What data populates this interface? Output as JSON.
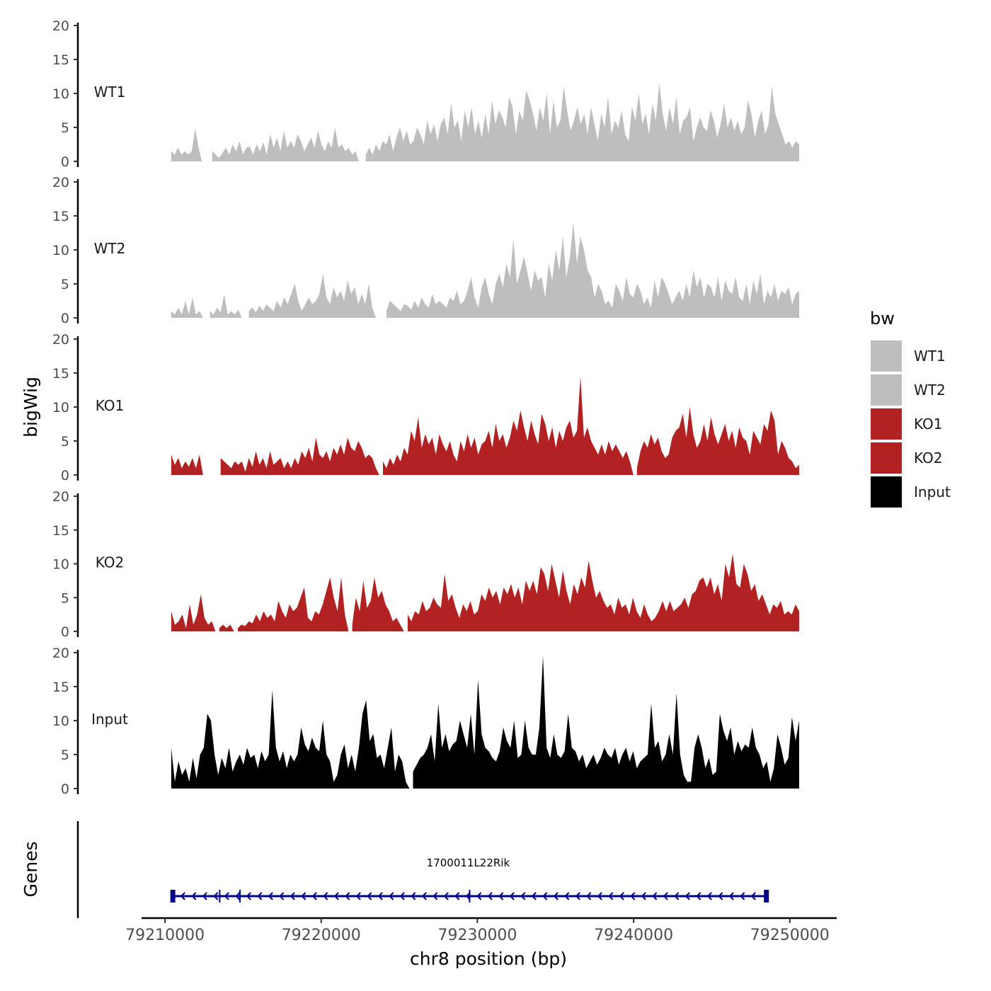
{
  "chart_data": {
    "type": "area",
    "title": "",
    "ylabel": "bigWig",
    "xlabel": "chr8 position (bp)",
    "genes_label": "Genes",
    "ylim": [
      0,
      20
    ],
    "yticks": [
      0,
      5,
      10,
      15,
      20
    ],
    "xlim": [
      79208500,
      79253000
    ],
    "xticks": [
      79210000,
      79220000,
      79230000,
      79240000,
      79250000
    ],
    "xtick_labels": [
      "79210000",
      "79220000",
      "79230000",
      "79240000",
      "79250000"
    ],
    "data_range": [
      79210400,
      79250600
    ],
    "legend": {
      "title": "bw",
      "position": "right",
      "entries": [
        {
          "name": "WT1",
          "color": "#bebebe"
        },
        {
          "name": "WT2",
          "color": "#bebebe"
        },
        {
          "name": "KO1",
          "color": "#b22222"
        },
        {
          "name": "KO2",
          "color": "#b22222"
        },
        {
          "name": "Input",
          "color": "#000000"
        }
      ]
    },
    "series": [
      {
        "name": "WT1",
        "color": "#bebebe",
        "values": [
          1.5,
          1,
          2,
          1,
          1.5,
          1,
          1.5,
          4.8,
          2,
          0,
          0,
          0,
          1.5,
          1,
          0.5,
          1.2,
          2,
          1,
          2.5,
          1.5,
          3,
          1,
          2,
          2.2,
          1,
          2.5,
          1.5,
          2.8,
          1,
          4,
          2,
          3.5,
          1.5,
          4.5,
          2,
          3,
          2,
          4,
          3,
          1.5,
          2.5,
          3.5,
          2,
          4.5,
          2.5,
          1.5,
          3,
          2,
          5,
          2,
          2.5,
          1.5,
          2,
          1,
          1.5,
          0,
          0,
          1,
          2,
          1,
          2.5,
          1.5,
          3,
          2.5,
          4,
          1.5,
          3.5,
          5,
          3,
          4.5,
          2.5,
          3,
          5,
          4,
          2.5,
          6,
          4,
          5.5,
          3,
          5.5,
          6.5,
          4,
          8.5,
          5,
          6,
          3,
          7.5,
          5,
          8,
          4,
          6,
          3.5,
          7,
          4,
          9,
          5.5,
          7.5,
          6.5,
          5,
          9.5,
          8,
          4,
          7.5,
          6,
          10.5,
          9,
          7,
          4.5,
          8,
          6,
          10,
          4,
          9,
          5,
          6,
          11,
          7.5,
          4.5,
          6,
          8,
          5.5,
          7,
          4,
          8,
          5.5,
          3,
          7,
          5,
          9.5,
          4,
          6,
          5,
          7.5,
          4,
          3,
          8,
          6,
          10,
          5.5,
          7,
          4,
          8.5,
          6,
          11.5,
          7,
          4.5,
          8,
          5.5,
          9.5,
          4,
          6,
          6.5,
          8,
          3,
          5,
          6.5,
          5,
          4.5,
          7.5,
          6,
          3.5,
          5.5,
          8.5,
          5,
          6.5,
          4.5,
          6,
          4,
          5,
          9,
          7,
          3.5,
          6,
          7.5,
          4,
          5.5,
          11,
          7,
          5.5,
          4,
          2.5,
          3,
          2,
          3,
          2.5
        ]
      },
      {
        "name": "WT2",
        "color": "#bebebe",
        "values": [
          1,
          0.5,
          1.5,
          0.5,
          2.5,
          0.5,
          3,
          0.5,
          1,
          0,
          0,
          1,
          0.5,
          1.5,
          0.8,
          3.5,
          0.5,
          1,
          0.5,
          1.2,
          0,
          0,
          1,
          1.5,
          0.8,
          1.8,
          1,
          2,
          1.5,
          1,
          2.5,
          1.5,
          3,
          2,
          3.5,
          5,
          2.5,
          1,
          2,
          3,
          2,
          2.5,
          3.5,
          6.5,
          3,
          2,
          4.5,
          3,
          4,
          2.5,
          5.5,
          3.5,
          4.5,
          2,
          3.5,
          2,
          5,
          1.5,
          0,
          0,
          0,
          1,
          2.5,
          2,
          1.5,
          1,
          2,
          1.8,
          1.2,
          2.5,
          1.5,
          3,
          2,
          1.5,
          3.5,
          2,
          2.5,
          2,
          1.5,
          3,
          2.5,
          4,
          2,
          2.5,
          4,
          6,
          3,
          1.5,
          4.5,
          6,
          3.5,
          2,
          5,
          6.5,
          4.5,
          8,
          6,
          11.5,
          5,
          7,
          9,
          6.5,
          4,
          7,
          5.5,
          6,
          3,
          8,
          5.5,
          10,
          7,
          12,
          6,
          9,
          14,
          8,
          12,
          10,
          7,
          6,
          3,
          5,
          4,
          2,
          2.5,
          1.5,
          5,
          4,
          2.5,
          6,
          3.5,
          3,
          5,
          4,
          2,
          3,
          1.5,
          5.5,
          3,
          6,
          5,
          3.5,
          2,
          3,
          4,
          2.5,
          5,
          3,
          7,
          4.5,
          6,
          3,
          5,
          4.5,
          3,
          6,
          2.5,
          5.5,
          4,
          3.5,
          6,
          3,
          2.5,
          5,
          2,
          5.5,
          3.5,
          6.5,
          2,
          4,
          3,
          5,
          2.5,
          4,
          3.5,
          4.5,
          2,
          3.5,
          4
        ]
      },
      {
        "name": "KO1",
        "color": "#b22222",
        "values": [
          3,
          1.5,
          2.5,
          1,
          2,
          1.2,
          2.5,
          1,
          3,
          0,
          0,
          0,
          0,
          0,
          2.5,
          2,
          1.5,
          1,
          2,
          1.5,
          2,
          0.5,
          2.5,
          1.2,
          3.5,
          1.5,
          2.5,
          1,
          3.5,
          1.5,
          2,
          2.5,
          1,
          2,
          1,
          2.5,
          1.5,
          3.5,
          2.5,
          4,
          2,
          5.5,
          3,
          2.5,
          3.5,
          2,
          4,
          3,
          4.5,
          3,
          5.5,
          4,
          3.5,
          5,
          4,
          2.5,
          3,
          2.5,
          1,
          0,
          2,
          1,
          2.5,
          1.5,
          3,
          2,
          4,
          3,
          6.5,
          5,
          8.5,
          4,
          6,
          4.5,
          5.5,
          3,
          6,
          4.5,
          3.5,
          5,
          3,
          2,
          5,
          3.5,
          6,
          4,
          5.5,
          3,
          4.5,
          5,
          6.5,
          4,
          7.5,
          5,
          6,
          4,
          5.5,
          8,
          6.5,
          9.5,
          7,
          5,
          8,
          6,
          4.5,
          9,
          7.5,
          5,
          7,
          4,
          6.5,
          5,
          7,
          8,
          5.5,
          6.5,
          14.5,
          5.5,
          7,
          5,
          4,
          3,
          4.5,
          3,
          5,
          3.5,
          4.5,
          3.5,
          2.5,
          3.5,
          2,
          0,
          1,
          3.5,
          5,
          4,
          6,
          4.5,
          5.5,
          3.5,
          2.5,
          3,
          5.5,
          6.5,
          7,
          9,
          5.5,
          10,
          6,
          4,
          5,
          7.5,
          5,
          8.5,
          6,
          4.5,
          6,
          7.5,
          5,
          6.5,
          4,
          7,
          5.5,
          5,
          3,
          6.5,
          5.5,
          4.5,
          7.5,
          6.5,
          9.5,
          8,
          3,
          5,
          4,
          2.5,
          2,
          1,
          1.5
        ]
      },
      {
        "name": "KO2",
        "color": "#b22222",
        "values": [
          3,
          1,
          1.5,
          2.5,
          0.5,
          4,
          1,
          2.5,
          5.5,
          2,
          1,
          1.5,
          0,
          0.5,
          1,
          0.5,
          1,
          0,
          0.5,
          1,
          0.8,
          1.5,
          1.2,
          2.5,
          1.5,
          3,
          2,
          2.5,
          1.5,
          4.5,
          3,
          2,
          4,
          3,
          3.5,
          5,
          6.5,
          2,
          1.5,
          3,
          2.5,
          4,
          6,
          8,
          5,
          3,
          8,
          2.5,
          0,
          1,
          5,
          3,
          7.5,
          3.5,
          4.5,
          8,
          5,
          6,
          4,
          3,
          1.5,
          2,
          1,
          0,
          2.5,
          1.5,
          3,
          2.5,
          4.5,
          3,
          3.5,
          5,
          4,
          3.5,
          8.5,
          4.5,
          5.5,
          3.5,
          2,
          4,
          3,
          4.5,
          2.5,
          3,
          5.5,
          4.5,
          6.5,
          5,
          6,
          4,
          6.5,
          5.5,
          7,
          5,
          6.5,
          4,
          7.5,
          6,
          7.5,
          5.5,
          9.5,
          8.5,
          6,
          10,
          7.5,
          5,
          9,
          6,
          4,
          7,
          5.5,
          8,
          6.5,
          10.5,
          7.5,
          5,
          6,
          4.5,
          3.5,
          4,
          2.5,
          5,
          3.5,
          4,
          2.5,
          5,
          3,
          2,
          4,
          2.5,
          1.5,
          2,
          3,
          4.5,
          3,
          4.5,
          3,
          3.5,
          4,
          5,
          3.5,
          5.5,
          6,
          7.5,
          8,
          6.5,
          8,
          5.5,
          7,
          4.5,
          10,
          8,
          11.5,
          7,
          6.5,
          10,
          8.5,
          6,
          7,
          4.5,
          5.5,
          4,
          2.5,
          4,
          3.5,
          4.5,
          2.5,
          3,
          2.5,
          4,
          3
        ]
      },
      {
        "name": "Input",
        "color": "#000000",
        "values": [
          6,
          1,
          4,
          2,
          3,
          1,
          4.5,
          1.5,
          5,
          6,
          11,
          10,
          5,
          2,
          4.5,
          3,
          6,
          2.5,
          4,
          5,
          3.5,
          6,
          4.5,
          5,
          3,
          5.5,
          4,
          5,
          14.5,
          6,
          4,
          5.5,
          3,
          5,
          4,
          5,
          9,
          6.5,
          5.5,
          7.5,
          6,
          5.5,
          10,
          5,
          4,
          1,
          2,
          5,
          6.5,
          3,
          5,
          2.5,
          6,
          11,
          13,
          7,
          8,
          4.5,
          5,
          3,
          6,
          9,
          2.5,
          5,
          4,
          1,
          0,
          2.5,
          3.5,
          4.5,
          5,
          6,
          8,
          4,
          12.5,
          6,
          8,
          5.5,
          6.5,
          7,
          10,
          8,
          6,
          11,
          5,
          16,
          8,
          6,
          5.5,
          4.5,
          4,
          5.5,
          9,
          7,
          6,
          10,
          4.5,
          5,
          10,
          6,
          5,
          5,
          9,
          19.5,
          6,
          4.5,
          8,
          5,
          4.5,
          5.5,
          11,
          6,
          5.5,
          4,
          5,
          3,
          4,
          5,
          3.5,
          4.5,
          6,
          5,
          4.5,
          6,
          3.5,
          5,
          6,
          4,
          5.5,
          3,
          4,
          4.5,
          5,
          12.5,
          6,
          7,
          4,
          5,
          8,
          5,
          14,
          5,
          2,
          1,
          1,
          6,
          8,
          6,
          3,
          4.5,
          2,
          2.5,
          11,
          8.5,
          7,
          9,
          5,
          7,
          5.5,
          6.5,
          6,
          9,
          6,
          5,
          3,
          4,
          1,
          3,
          8,
          6,
          3.5,
          4.5,
          10.5,
          7,
          10
        ]
      }
    ],
    "gene": {
      "name": "1700011L22Rik",
      "start": 79210500,
      "end": 79248500,
      "strand": "-",
      "exon_marks": [
        79210500,
        79213500,
        79214800,
        79229500,
        79248500
      ],
      "color": "#00008b"
    }
  }
}
